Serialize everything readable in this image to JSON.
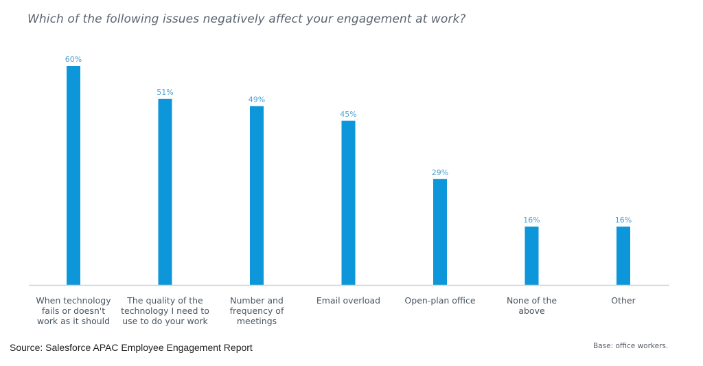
{
  "chart_data": {
    "type": "bar",
    "title": "Which of the following issues negatively affect your engagement at work?",
    "xlabel": "",
    "ylabel": "",
    "ylim": [
      0,
      60
    ],
    "grid": false,
    "legend": null,
    "categories": [
      [
        "When technology",
        "fails or doesn't",
        "work as it should"
      ],
      [
        "The quality of the",
        "technology I need to",
        "use to do your work"
      ],
      [
        "Number and",
        "frequency of",
        "meetings"
      ],
      [
        "Email overload"
      ],
      [
        "Open-plan office"
      ],
      [
        "None of the",
        "above"
      ],
      [
        "Other"
      ]
    ],
    "values": [
      60,
      51,
      49,
      45,
      29,
      16,
      16
    ],
    "value_labels": [
      "60%",
      "51%",
      "49%",
      "45%",
      "29%",
      "16%",
      "16%"
    ],
    "unit": "%",
    "colors": {
      "bar": "#0d96d9",
      "value_label": "#4a9fd0",
      "axis": "#cfd3d7",
      "category_label": "#4a5560"
    }
  },
  "footer": {
    "source": "Source: Salesforce APAC Employee Engagement Report",
    "base": "Base: office workers."
  }
}
